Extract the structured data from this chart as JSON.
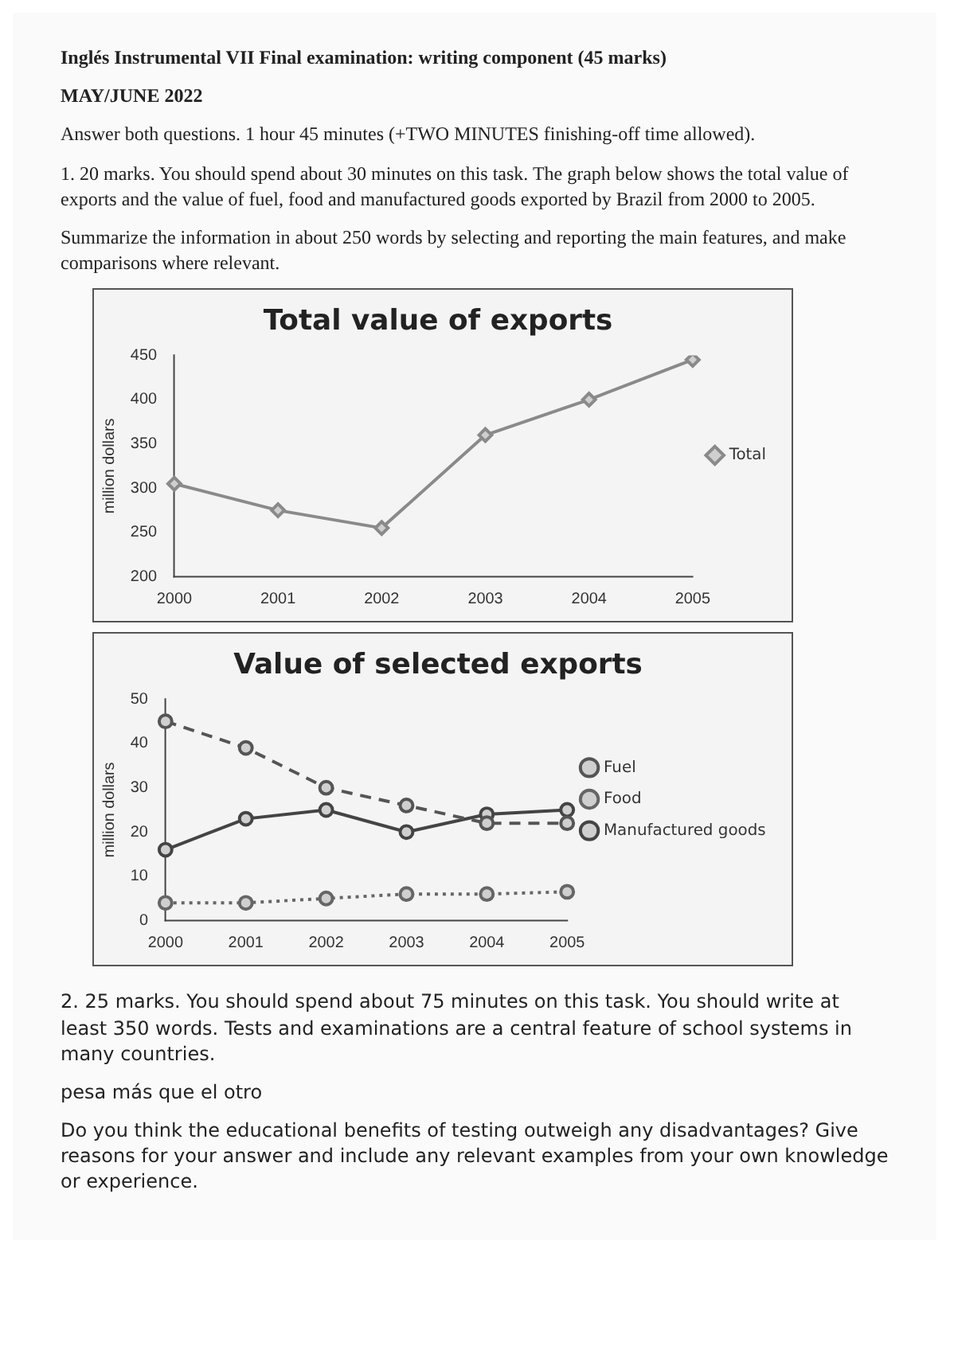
{
  "chart_data": [
    {
      "type": "line",
      "title": "Total value of exports",
      "ylabel": "million dollars",
      "annotations": [
        "Inglés Instrumental VII Final examination: writing component (45 marks)",
        "MAY/JUNE 2022",
        "Answer both questions. 1 hour 45 minutes (+TWO MINUTES finishing-off time allowed).",
        "1. 20 marks. You should spend about 30 minutes on this task. The graph below shows the total value of exports and the value of fuel, food and manufactured goods exported by Brazil from 2000 to 2005.",
        "Summarize the information in about 250 words by selecting and reporting the main features, and make comparisons where relevant."
      ],
      "categories": [
        "2000",
        "2001",
        "2002",
        "2003",
        "2004",
        "2005"
      ],
      "series": [
        {
          "name": "Total",
          "color": "#8a8a8a",
          "line_style": "solid",
          "values": [
            305,
            275,
            255,
            360,
            400,
            445
          ]
        }
      ],
      "ylim": [
        200,
        450
      ],
      "yticks": [
        200,
        250,
        300,
        350,
        400,
        450
      ],
      "grid": false,
      "legend": "right",
      "marker": "diamond"
    },
    {
      "type": "line",
      "title": "Value of selected exports",
      "ylabel": "million dollars",
      "annotations": [
        "2. 25 marks. You should spend about 75 minutes on this task. You should write at least 350 words. Tests and examinations are a central feature of school systems in many countries.",
        "pesa más que el otro",
        "Do you think the educational benefits of testing outweigh any disadvantages? Give reasons for your answer and include any relevant examples from your own knowledge or experience."
      ],
      "categories": [
        "2000",
        "2001",
        "2002",
        "2003",
        "2004",
        "2005"
      ],
      "series": [
        {
          "name": "Fuel",
          "color": "#555555",
          "line_style": "dashed",
          "values": [
            45,
            39,
            30,
            26,
            22,
            22
          ]
        },
        {
          "name": "Food",
          "color": "#666666",
          "line_style": "dotted",
          "values": [
            4,
            4,
            5,
            6,
            6,
            6.5
          ]
        },
        {
          "name": "Manufactured goods",
          "color": "#444444",
          "line_style": "solid",
          "values": [
            16,
            23,
            25,
            20,
            24,
            25
          ]
        }
      ],
      "ylim": [
        0,
        50
      ],
      "yticks": [
        0,
        10,
        20,
        30,
        40,
        50
      ],
      "grid": false,
      "legend": "right",
      "marker": "circle"
    }
  ]
}
